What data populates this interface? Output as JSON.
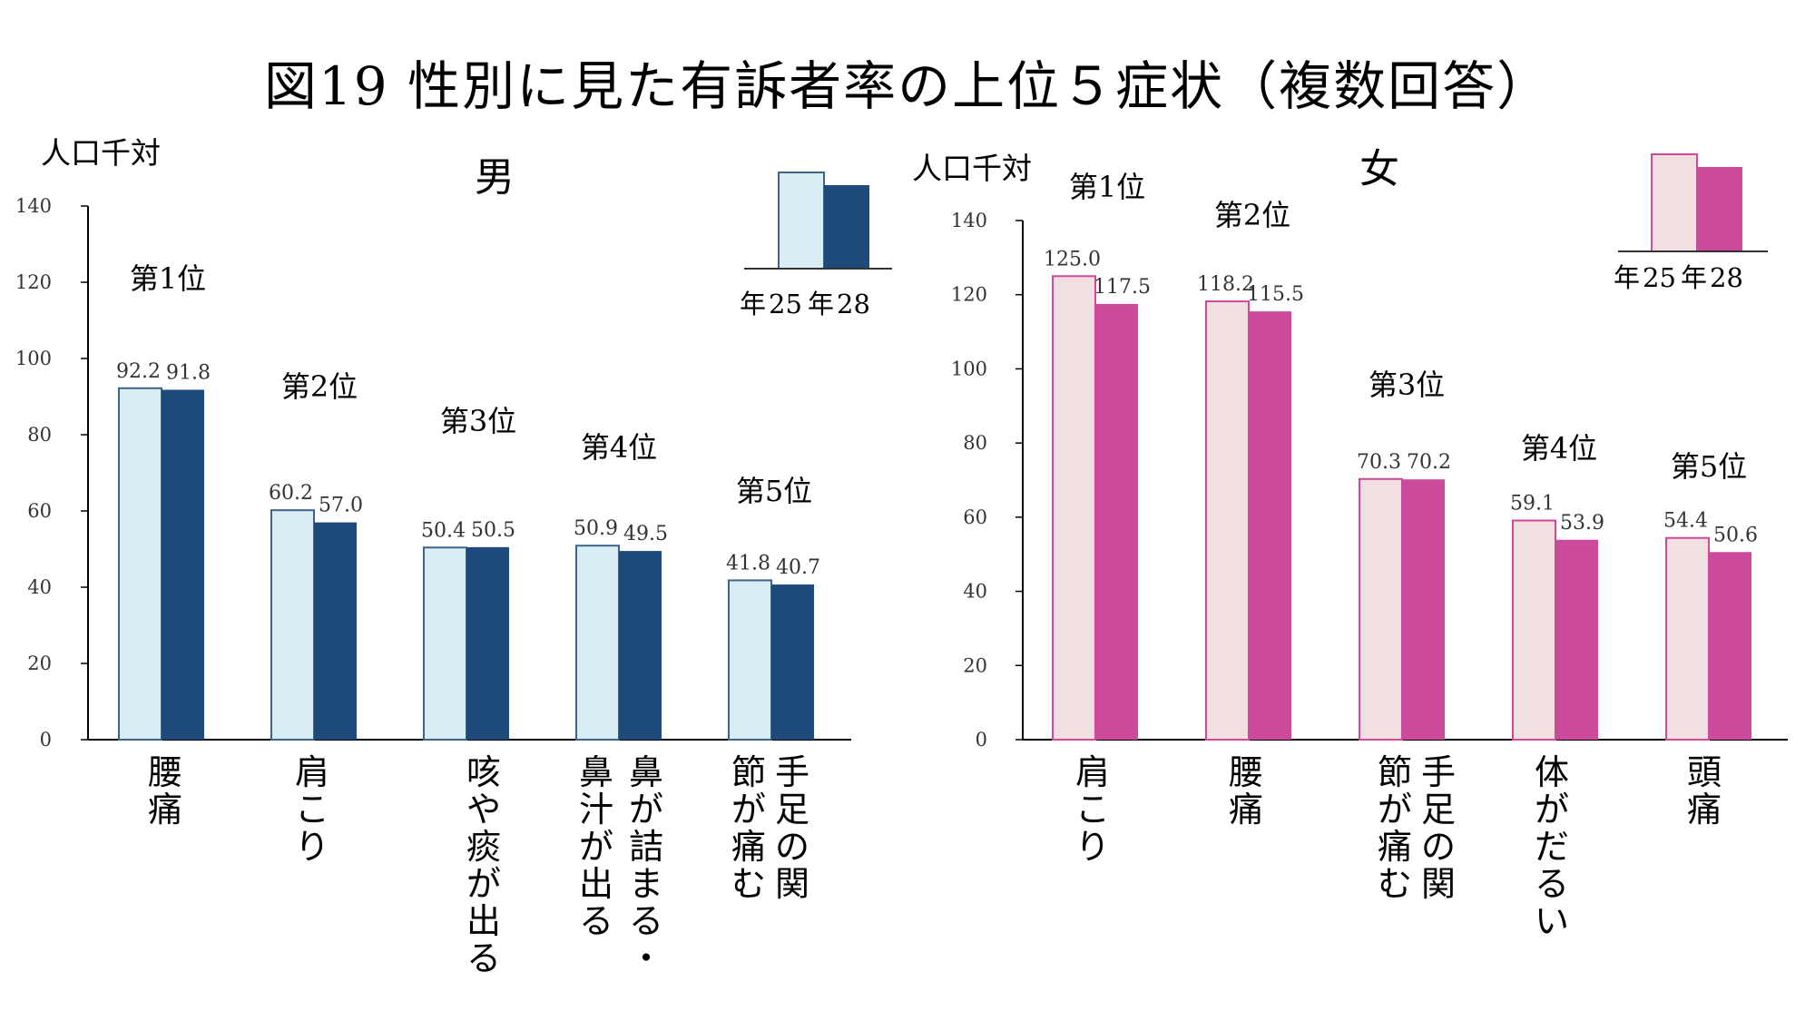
{
  "title": "図19  性別に見た有訴者率の上位５症状（複数回答）",
  "colors": {
    "male_prev_fill": "#d9edf5",
    "male_prev_stroke": "#3d6488",
    "male_curr": "#1f4a7c",
    "female_prev_fill": "#f2dfe1",
    "female_prev_stroke": "#d1479a",
    "female_curr": "#cc4a9c",
    "axis": "#000000"
  },
  "chart_data": [
    {
      "type": "bar",
      "panel_title": "男",
      "ylabel": "人口千対",
      "ylim": [
        0,
        140
      ],
      "yticks": [
        0,
        20,
        40,
        60,
        80,
        100,
        120,
        140
      ],
      "legend": {
        "labels": [
          "年",
          "25",
          "年",
          "28"
        ]
      },
      "ranks": [
        "第1位",
        "第2位",
        "第3位",
        "第4位",
        "第5位"
      ],
      "categories": [
        [
          "腰",
          "痛"
        ],
        [
          "肩",
          "こ",
          "り"
        ],
        [
          "咳",
          "や",
          "痰",
          "が",
          "出",
          "る"
        ],
        [
          "鼻",
          "が",
          "詰",
          "ま",
          "る",
          "・",
          "鼻",
          "汁",
          "が",
          "出",
          "る"
        ],
        [
          "手",
          "足",
          "の",
          "関",
          "節",
          "が",
          "痛",
          "む"
        ]
      ],
      "series": [
        {
          "name": "25",
          "values": [
            92.2,
            60.2,
            50.4,
            50.9,
            41.8
          ],
          "labels": [
            "92.2",
            "60.2",
            "50.4",
            "50.9",
            "41.8"
          ]
        },
        {
          "name": "28",
          "values": [
            91.8,
            57.0,
            50.5,
            49.5,
            40.7
          ],
          "labels": [
            "91.8",
            "57.0",
            "50.5",
            "49.5",
            "40.7"
          ]
        }
      ]
    },
    {
      "type": "bar",
      "panel_title": "女",
      "ylabel": "人口千対",
      "ylim": [
        0,
        140
      ],
      "yticks": [
        0,
        20,
        40,
        60,
        80,
        100,
        120,
        140
      ],
      "legend": {
        "labels": [
          "年",
          "25",
          "年",
          "28"
        ]
      },
      "ranks": [
        "第1位",
        "第2位",
        "第3位",
        "第4位",
        "第5位"
      ],
      "categories": [
        [
          "肩",
          "こ",
          "り"
        ],
        [
          "腰",
          "痛"
        ],
        [
          "手",
          "足",
          "の",
          "関",
          "節",
          "が",
          "痛",
          "む"
        ],
        [
          "体",
          "が",
          "だ",
          "る",
          "い"
        ],
        [
          "頭",
          "痛"
        ]
      ],
      "series": [
        {
          "name": "25",
          "values": [
            125.0,
            118.2,
            70.3,
            59.1,
            54.4
          ],
          "labels": [
            "125.0",
            "118.2",
            "70.3",
            "59.1",
            "54.4"
          ]
        },
        {
          "name": "28",
          "values": [
            117.5,
            115.5,
            70.2,
            53.9,
            50.6
          ],
          "labels": [
            "117.5",
            "115.5",
            "70.2",
            "53.9",
            "50.6"
          ]
        }
      ]
    }
  ]
}
